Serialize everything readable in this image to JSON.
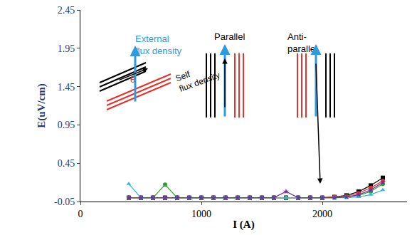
{
  "chart_data": {
    "type": "line",
    "x_label": "I (A)",
    "y_label": "E(uV/cm)",
    "x": [
      400,
      500,
      600,
      700,
      800,
      900,
      1000,
      1100,
      1200,
      1300,
      1400,
      1500,
      1600,
      1700,
      1800,
      1900,
      2000,
      2100,
      2200,
      2300,
      2400,
      2500
    ],
    "series": [
      {
        "color": "#000000",
        "marker": "square",
        "line_style": "solid",
        "values": [
          0,
          0,
          0,
          0,
          0,
          0,
          0,
          0,
          0,
          0,
          0,
          0,
          0,
          0,
          0,
          0,
          0,
          0.01,
          0.03,
          0.08,
          0.16,
          0.26
        ]
      },
      {
        "color": "#e8312a",
        "marker": "circle",
        "line_style": "solid",
        "values": [
          0,
          0,
          0,
          0,
          0,
          0,
          0,
          0,
          0,
          0,
          0,
          0,
          0,
          0,
          0,
          0,
          0,
          0.01,
          0.02,
          0.06,
          0.13,
          0.22
        ]
      },
      {
        "color": "#2ca02c",
        "marker": "circle",
        "line_style": "solid",
        "values": [
          0,
          0,
          0,
          0.17,
          0,
          0,
          0,
          0,
          0,
          0,
          0,
          0,
          0,
          0,
          0,
          0,
          0,
          0,
          0.01,
          0.03,
          0.08,
          0.18
        ]
      },
      {
        "color": "#35b6e6",
        "marker": "triangle-up",
        "line_style": "solid",
        "values": [
          0.18,
          0,
          0,
          0,
          0,
          0,
          0,
          0,
          0,
          0,
          0,
          0,
          0,
          0,
          0,
          0,
          0,
          0,
          0,
          0.01,
          0.04,
          0.1
        ]
      },
      {
        "color": "#7030a0",
        "marker": "star",
        "line_style": "solid",
        "values": [
          0,
          0,
          0,
          0,
          0,
          0,
          0,
          0,
          0,
          0,
          0,
          0,
          0,
          0.08,
          0,
          0,
          0,
          0,
          0.01,
          0.04,
          0.1,
          0.2
        ]
      }
    ],
    "xlim": [
      0,
      2700
    ],
    "xticks": [
      0,
      1000,
      2000
    ],
    "ylim": [
      -0.05,
      2.45
    ],
    "yticks": [
      -0.05,
      0.45,
      0.95,
      1.45,
      1.95,
      2.45
    ],
    "grid": false,
    "annotations": [
      "External\nflux density",
      "Self\nflux density",
      "θ",
      "Parallel",
      "Anti-\nparallel"
    ]
  }
}
